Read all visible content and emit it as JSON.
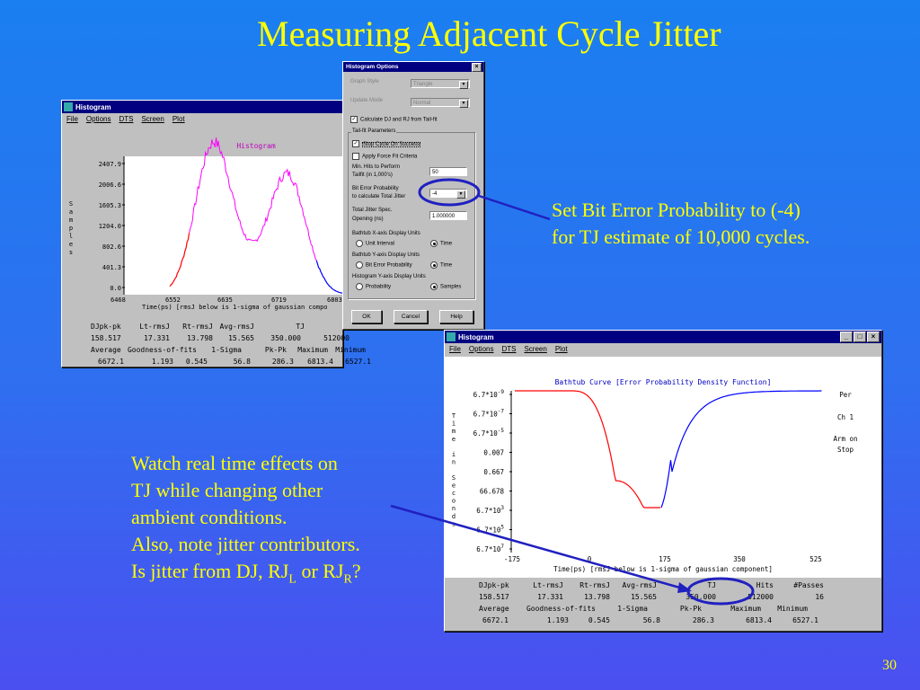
{
  "slide": {
    "title": "Measuring Adjacent Cycle Jitter",
    "note_right": [
      "Set Bit Error Probability to (-4)",
      "for TJ estimate of 10,000 cycles."
    ],
    "note_left": [
      "Watch real time effects on",
      "TJ while changing other",
      "ambient conditions.",
      "Also, note jitter contributors."
    ],
    "question_prefix": "Is jitter from DJ, RJ",
    "question_sub1": "L",
    "question_mid": " or RJ",
    "question_sub2": "R",
    "question_end": "?",
    "page_number": "30"
  },
  "colors": {
    "accent_text": "#ffff00",
    "circle": "#2020c0",
    "magenta": "#ff00ff",
    "red": "#ff0000",
    "blue": "#0000ff"
  },
  "win1": {
    "title": "Histogram",
    "menu": [
      "File",
      "Options",
      "DTS",
      "Screen",
      "Plot"
    ],
    "plot_title": "Histogram",
    "ylabel": "Samples",
    "yticks": [
      "2407.9",
      "2006.6",
      "1605.3",
      "1204.0",
      "802.6",
      "401.3",
      "0.0"
    ],
    "xticks": [
      "6468",
      "6552",
      "6635",
      "6719",
      "6803"
    ],
    "xlabel": "Time(ps) [rmsJ below is 1-sigma of gaussian compo",
    "stats": [
      [
        "DJpk-pk",
        "Lt-rmsJ",
        "Rt-rmsJ",
        "Avg-rmsJ",
        "TJ",
        "",
        "16"
      ],
      [
        "158.517",
        "17.331",
        "13.798",
        "15.565",
        "350.000",
        "512000",
        ""
      ],
      [
        "Average",
        "Goodness-of-fits",
        "1-Sigma",
        "Pk-Pk",
        "Maximum",
        "Minimum",
        ""
      ],
      [
        "6672.1",
        "1.193",
        "0.545",
        "56.8",
        "286.3",
        "6813.4",
        "6527.1"
      ]
    ]
  },
  "win2": {
    "title": "Histogram",
    "menu": [
      "File",
      "Options",
      "DTS",
      "Screen",
      "Plot"
    ],
    "plot_title": "Bathtub Curve [Error Probability Density Function]",
    "ylabel": "Time in Seconds",
    "yticks": [
      {
        "base": "6.7*10",
        "exp": "-9"
      },
      {
        "base": "6.7*10",
        "exp": "-7"
      },
      {
        "base": "6.7*10",
        "exp": "-5"
      },
      {
        "base": "0.007",
        "exp": ""
      },
      {
        "base": "0.667",
        "exp": ""
      },
      {
        "base": "66.678",
        "exp": ""
      },
      {
        "base": "6.7*10",
        "exp": "3"
      },
      {
        "base": "6.7*10",
        "exp": "5"
      },
      {
        "base": "6.7*10",
        "exp": "7"
      }
    ],
    "xticks": [
      "-175",
      "0",
      "175",
      "350",
      "525"
    ],
    "xlabel": "Time(ps) [rmsJ below is 1-sigma of gaussian component]",
    "side": [
      "Per",
      "Ch 1",
      "Arm on",
      "Stop"
    ],
    "stats": [
      [
        "DJpk-pk",
        "Lt-rmsJ",
        "Rt-rmsJ",
        "Avg-rmsJ",
        "TJ",
        "Hits",
        "#Passes"
      ],
      [
        "158.517",
        "17.331",
        "13.798",
        "15.565",
        "350.000",
        "512000",
        "16"
      ],
      [
        "Average",
        "Goodness-of-fits",
        "1-Sigma",
        "Pk-Pk",
        "Maximum",
        "Minimum",
        ""
      ],
      [
        "6672.1",
        "1.193",
        "0.545",
        "56.8",
        "286.3",
        "6813.4",
        "6527.1"
      ]
    ]
  },
  "dialog": {
    "title": "Histogram Options",
    "graph_style_label": "Graph Style",
    "graph_style_value": "Triangle",
    "update_mode_label": "Update Mode",
    "update_mode_value": "Normal",
    "calc_dj_rj": "Calculate DJ and RJ from Tail-fit",
    "tailfit_group": "Tail-fit Parameters",
    "stop_cycle": "Stop Cycle On Success",
    "apply_force": "Apply Force Fit Criteria",
    "min_hits_label1": "Min. Hits to Perform",
    "min_hits_label2": "Tailfit (in 1,000's)",
    "min_hits_value": "50",
    "ber_label1": "Bit Error Probability",
    "ber_label2": "to calculate Total Jitter",
    "ber_value": "-4",
    "tj_label1": "Total Jitter Spec.",
    "tj_label2": "Opening (ns)",
    "tj_value": "1.000000",
    "bathtub_x_label": "Bathtub X-axis Display Units",
    "bathtub_x_opt1": "Unit Interval",
    "bathtub_x_opt2": "Time",
    "bathtub_y_label": "Bathtub Y-axis Display Units",
    "bathtub_y_opt1": "Bit Error Probability",
    "bathtub_y_opt2": "Time",
    "hist_y_label": "Histogram Y-axis Display Units",
    "hist_y_opt1": "Probability",
    "hist_y_opt2": "Samples",
    "ok": "OK",
    "cancel": "Cancel",
    "help": "Help"
  }
}
